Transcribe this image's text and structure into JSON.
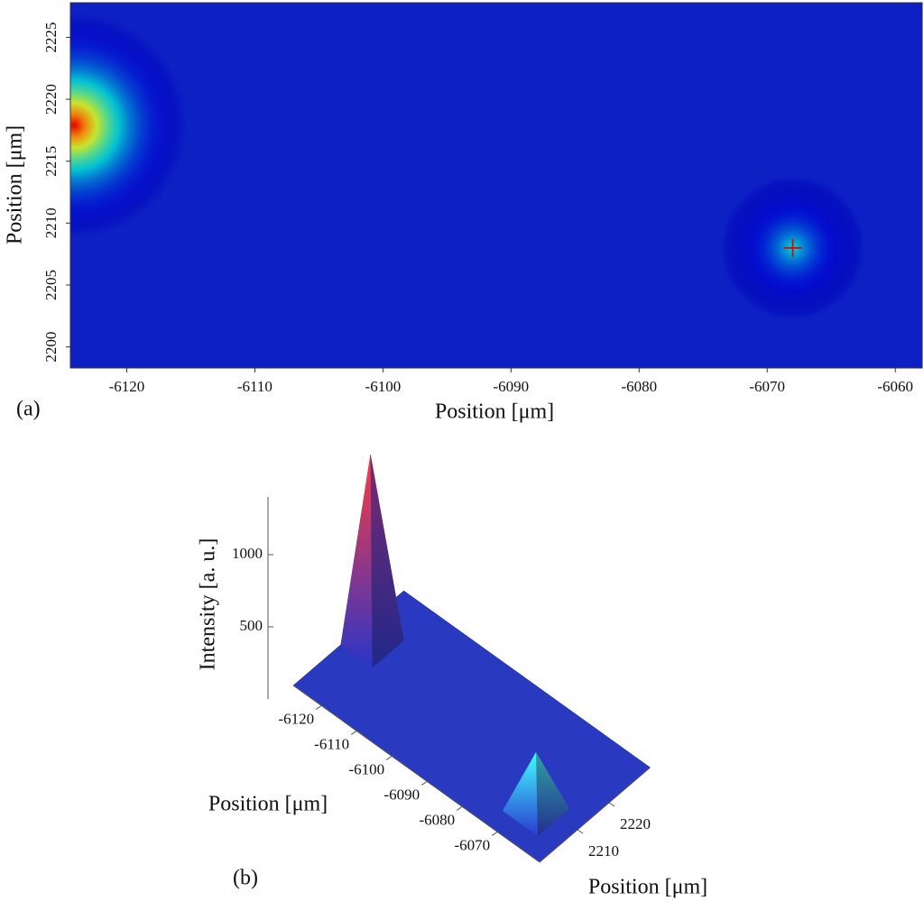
{
  "chart_data": [
    {
      "type": "heatmap",
      "panel": "(a)",
      "xlabel": "Position [μm]",
      "ylabel": "Position [μm]",
      "xlim": [
        -6124.4,
        -6057.9
      ],
      "ylim": [
        2198.3,
        2227.8
      ],
      "xticks": [
        -6120,
        -6110,
        -6100,
        -6090,
        -6080,
        -6070,
        -6060
      ],
      "yticks": [
        2200,
        2205,
        2210,
        2215,
        2220,
        2225
      ],
      "background": "#0c20c4",
      "peaks": [
        {
          "x": -6124.1,
          "y": 2217.9,
          "z": 1300
        },
        {
          "x": -6068,
          "y": 2208,
          "z": 400
        }
      ],
      "marker": {
        "x": -6068,
        "y": 2208,
        "color": "#d01010"
      }
    },
    {
      "type": "surface",
      "panel": "(b)",
      "xlabel": "Position [μm]",
      "ylabel": "Position [μm]",
      "zlabel": "Intensity [a. u.]",
      "xlim": [
        -6128,
        -6058
      ],
      "ylim": [
        2198,
        2233
      ],
      "zlim": [
        0,
        1400
      ],
      "xticks": [
        -6120,
        -6110,
        -6100,
        -6090,
        -6080,
        -6070
      ],
      "yticks": [
        2210,
        2220
      ],
      "zticks": [
        500,
        1000
      ],
      "color": "#2a3ac0",
      "peaks": [
        {
          "x": -6124,
          "y": 2218,
          "z": 1300
        },
        {
          "x": -6068,
          "y": 2208,
          "z": 400
        }
      ]
    }
  ]
}
